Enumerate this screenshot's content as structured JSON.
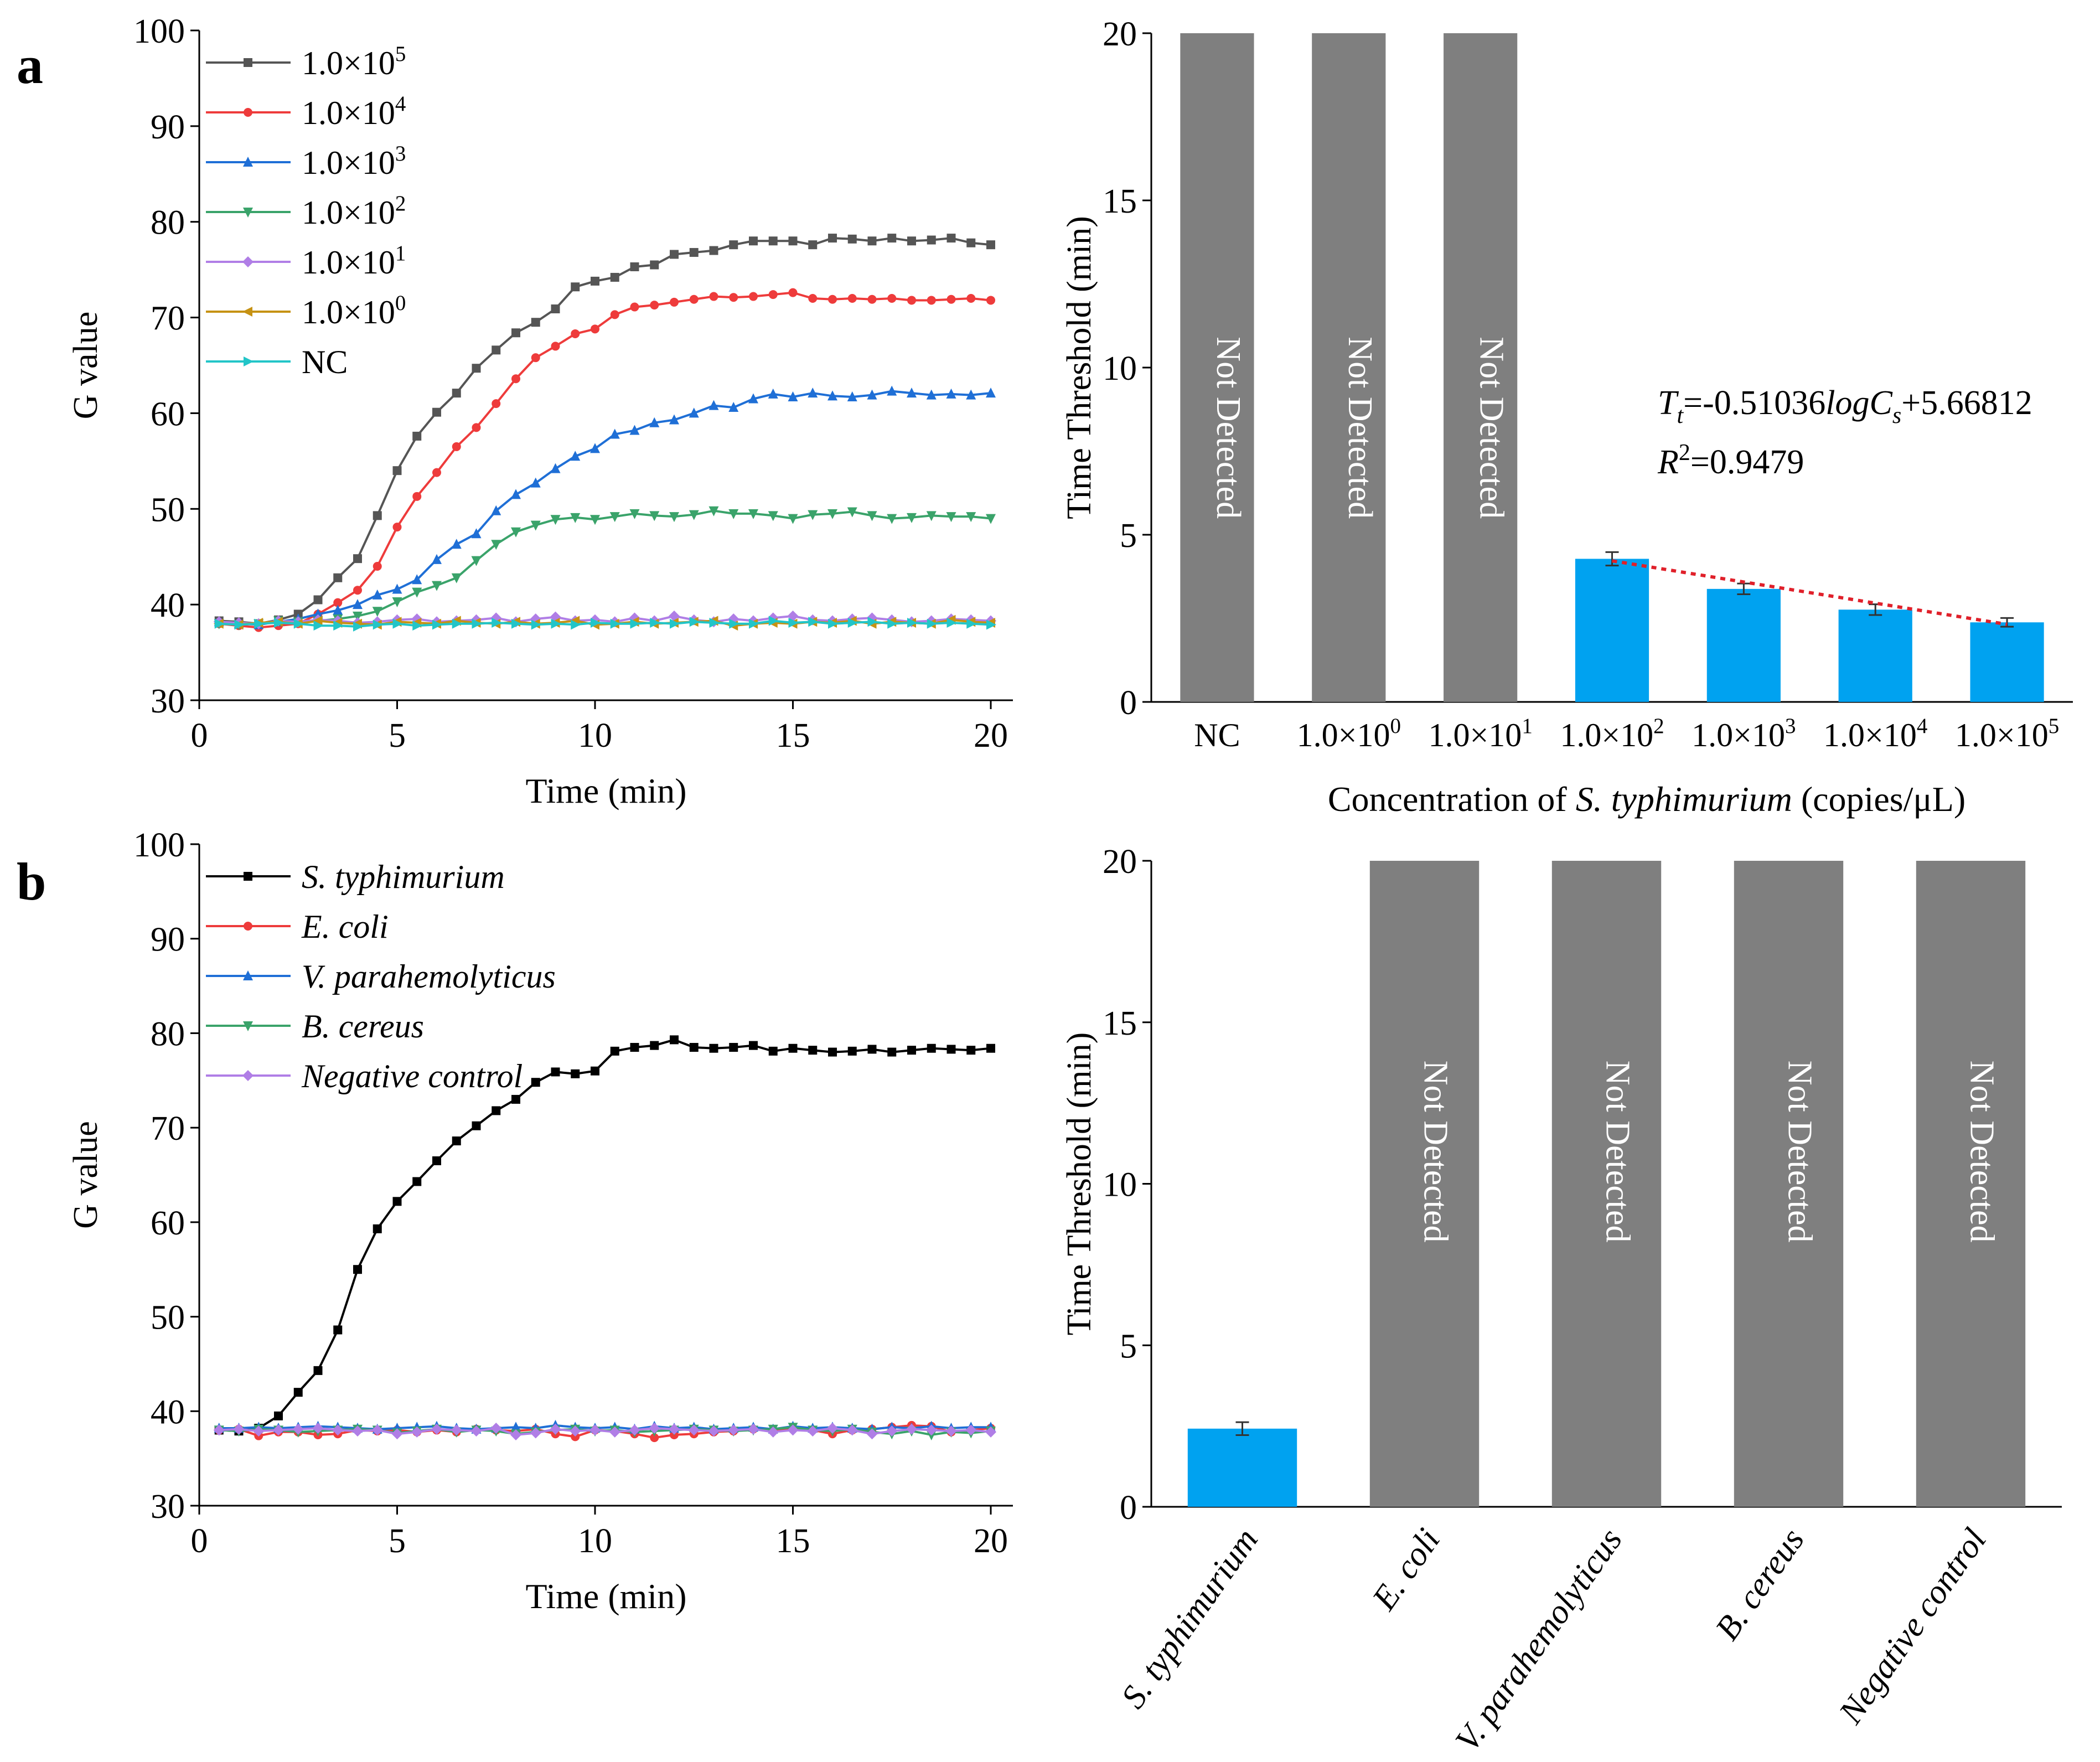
{
  "panel_labels": {
    "a": "a",
    "b": "b"
  },
  "colors": {
    "s1e5": "#555555",
    "s1e4": "#ee3b3b",
    "s1e3": "#1f6fd6",
    "s1e2": "#3aa36a",
    "s1e1": "#b07ee6",
    "s1e0": "#c69214",
    "nc": "#22c5c8",
    "black": "#000000",
    "bar_blue": "#00a2f0",
    "bar_gray": "#7f7f7f",
    "fit_red": "#e0202a"
  },
  "chart_data": [
    {
      "type": "line",
      "id": "a-left",
      "xlabel": "Time (min)",
      "ylabel": "G value",
      "xlim": [
        0,
        20
      ],
      "ylim": [
        30,
        100
      ],
      "xticks": [
        0,
        5,
        10,
        15,
        20
      ],
      "yticks": [
        30,
        40,
        50,
        60,
        70,
        80,
        90,
        100
      ],
      "legend_position": "top-left",
      "series": [
        {
          "name": "1.0×10⁵",
          "color_key": "s1e5",
          "marker": "square",
          "values": [
            38.3,
            38.2,
            38.0,
            38.4,
            39.0,
            40.5,
            42.8,
            44.8,
            49.3,
            54.0,
            57.6,
            60.1,
            62.1,
            64.7,
            66.6,
            68.4,
            69.5,
            70.9,
            73.2,
            73.8,
            74.2,
            75.3,
            75.5,
            76.6,
            76.8,
            77.0,
            77.6,
            78.0,
            78.0,
            78.0,
            77.6,
            78.3,
            78.2,
            78.0,
            78.3,
            78.0,
            78.1,
            78.3,
            77.8,
            77.6
          ]
        },
        {
          "name": "1.0×10⁴",
          "color_key": "s1e4",
          "marker": "circle",
          "values": [
            38.0,
            37.8,
            37.6,
            37.8,
            38.0,
            39.0,
            40.2,
            41.5,
            44.0,
            48.1,
            51.3,
            53.8,
            56.5,
            58.5,
            61.0,
            63.6,
            65.8,
            67.0,
            68.3,
            68.8,
            70.3,
            71.1,
            71.3,
            71.6,
            71.9,
            72.2,
            72.1,
            72.2,
            72.4,
            72.6,
            72.0,
            71.9,
            72.0,
            71.9,
            72.0,
            71.8,
            71.8,
            71.9,
            72.0,
            71.8
          ]
        },
        {
          "name": "1.0×10³",
          "color_key": "s1e3",
          "marker": "triangle-up",
          "values": [
            38.2,
            38.0,
            37.9,
            38.2,
            38.5,
            39.0,
            39.4,
            40.0,
            41.0,
            41.6,
            42.6,
            44.7,
            46.3,
            47.4,
            49.8,
            51.5,
            52.7,
            54.2,
            55.5,
            56.3,
            57.8,
            58.2,
            59.0,
            59.3,
            60.0,
            60.8,
            60.6,
            61.5,
            62.0,
            61.7,
            62.1,
            61.8,
            61.7,
            61.9,
            62.3,
            62.1,
            61.9,
            62.0,
            61.9,
            62.1
          ]
        },
        {
          "name": "1.0×10²",
          "color_key": "s1e2",
          "marker": "triangle-down",
          "values": [
            38.0,
            37.9,
            38.0,
            38.3,
            38.2,
            38.3,
            38.5,
            38.8,
            39.3,
            40.3,
            41.3,
            42.0,
            42.8,
            44.6,
            46.3,
            47.6,
            48.3,
            48.9,
            49.1,
            48.9,
            49.2,
            49.5,
            49.3,
            49.2,
            49.4,
            49.8,
            49.5,
            49.5,
            49.3,
            49.0,
            49.4,
            49.5,
            49.7,
            49.3,
            49.0,
            49.1,
            49.3,
            49.2,
            49.2,
            49.0
          ]
        },
        {
          "name": "1.0×10¹",
          "color_key": "s1e1",
          "marker": "diamond",
          "values": [
            38.2,
            38.1,
            38.0,
            38.3,
            38.2,
            38.4,
            38.3,
            38.1,
            38.2,
            38.4,
            38.5,
            38.2,
            38.3,
            38.4,
            38.6,
            38.2,
            38.5,
            38.7,
            38.3,
            38.4,
            38.2,
            38.6,
            38.3,
            38.8,
            38.4,
            38.2,
            38.5,
            38.3,
            38.6,
            38.8,
            38.4,
            38.3,
            38.5,
            38.6,
            38.4,
            38.2,
            38.3,
            38.5,
            38.4,
            38.3
          ]
        },
        {
          "name": "1.0×10⁰",
          "color_key": "s1e0",
          "marker": "triangle-left",
          "values": [
            38.0,
            37.9,
            38.1,
            38.2,
            38.0,
            38.3,
            38.1,
            38.0,
            37.9,
            38.2,
            38.1,
            38.0,
            38.3,
            38.1,
            38.0,
            38.2,
            38.0,
            38.1,
            38.3,
            37.9,
            38.0,
            38.2,
            38.0,
            38.1,
            38.2,
            38.3,
            37.8,
            38.0,
            38.1,
            38.0,
            38.2,
            38.1,
            38.3,
            38.0,
            38.2,
            38.1,
            38.0,
            38.4,
            38.2,
            38.1
          ]
        },
        {
          "name": "NC",
          "color_key": "nc",
          "marker": "triangle-right",
          "values": [
            38.0,
            37.9,
            38.0,
            38.1,
            38.0,
            37.8,
            37.8,
            37.7,
            37.9,
            38.0,
            37.8,
            37.9,
            38.0,
            38.0,
            38.1,
            38.0,
            37.9,
            38.0,
            37.9,
            38.1,
            38.0,
            38.0,
            38.1,
            38.0,
            38.2,
            38.1,
            38.0,
            38.0,
            38.3,
            38.1,
            38.2,
            38.0,
            38.1,
            38.2,
            38.0,
            38.1,
            38.0,
            38.1,
            38.0,
            37.9
          ]
        }
      ]
    },
    {
      "type": "bar",
      "id": "a-right",
      "xlabel_parts": [
        "Concentration of ",
        "S. typhimurium",
        " (copies/μL)"
      ],
      "ylabel": "Time Threshold (min)",
      "ylim": [
        0,
        20
      ],
      "yticks": [
        0,
        5,
        10,
        15,
        20
      ],
      "categories": [
        "NC",
        "1.0×10⁰",
        "1.0×10¹",
        "1.0×10²",
        "1.0×10³",
        "1.0×10⁴",
        "1.0×10⁵"
      ],
      "values": [
        20,
        20,
        20,
        4.28,
        3.38,
        2.76,
        2.38
      ],
      "errors": [
        0,
        0,
        0,
        0.2,
        0.16,
        0.16,
        0.13
      ],
      "detected": [
        false,
        false,
        false,
        true,
        true,
        true,
        true
      ],
      "not_detected_label": "Not Detected",
      "fit": {
        "type": "linear-trend",
        "y_start": 4.22,
        "y_end": 2.32
      },
      "equation": {
        "lhs": "T",
        "lhs_sub": "t",
        "mid": "=-0.51036",
        "log": "logC",
        "log_sub": "s",
        "rhs": "+5.66812"
      },
      "r2": {
        "symbol": "R",
        "sup": "2",
        "value": "=0.9479"
      }
    },
    {
      "type": "line",
      "id": "b-left",
      "xlabel": "Time (min)",
      "ylabel": "G value",
      "xlim": [
        0,
        20
      ],
      "ylim": [
        30,
        100
      ],
      "xticks": [
        0,
        5,
        10,
        15,
        20
      ],
      "yticks": [
        30,
        40,
        50,
        60,
        70,
        80,
        90,
        100
      ],
      "legend_position": "top-left",
      "series": [
        {
          "name": "S. typhimurium",
          "color_key": "black",
          "marker": "square",
          "values": [
            38.0,
            37.9,
            38.2,
            39.5,
            42.0,
            44.3,
            48.6,
            55.0,
            59.3,
            62.2,
            64.3,
            66.5,
            68.6,
            70.2,
            71.8,
            73.0,
            74.8,
            75.9,
            75.7,
            76.0,
            78.1,
            78.5,
            78.7,
            79.3,
            78.5,
            78.4,
            78.5,
            78.7,
            78.1,
            78.4,
            78.2,
            78.0,
            78.1,
            78.3,
            78.0,
            78.2,
            78.4,
            78.3,
            78.2,
            78.4
          ]
        },
        {
          "name": "E. coli",
          "color_key": "s1e4",
          "marker": "circle",
          "values": [
            38.0,
            38.1,
            37.4,
            37.8,
            37.8,
            37.5,
            37.6,
            38.0,
            37.9,
            38.0,
            37.8,
            38.0,
            37.8,
            38.1,
            38.0,
            37.9,
            38.1,
            37.6,
            37.3,
            38.0,
            37.9,
            37.6,
            37.2,
            37.5,
            37.6,
            37.8,
            37.9,
            38.1,
            38.0,
            38.2,
            38.0,
            37.6,
            38.0,
            38.1,
            38.3,
            38.5,
            38.4,
            37.8,
            38.0,
            38.2
          ]
        },
        {
          "name": "V. parahemolyticus",
          "color_key": "s1e3",
          "marker": "triangle-up",
          "values": [
            38.2,
            38.2,
            38.3,
            38.2,
            38.3,
            38.4,
            38.3,
            38.2,
            38.1,
            38.2,
            38.3,
            38.4,
            38.2,
            38.1,
            38.2,
            38.3,
            38.2,
            38.5,
            38.3,
            38.2,
            38.3,
            38.1,
            38.4,
            38.2,
            38.3,
            38.1,
            38.2,
            38.3,
            38.1,
            38.4,
            38.2,
            38.3,
            38.2,
            38.1,
            38.3,
            38.2,
            38.4,
            38.2,
            38.3,
            38.3
          ]
        },
        {
          "name": "B. cereus",
          "color_key": "s1e2",
          "marker": "triangle-down",
          "values": [
            38.0,
            37.9,
            38.1,
            38.0,
            37.8,
            37.9,
            38.0,
            38.1,
            38.0,
            37.7,
            37.9,
            38.1,
            37.8,
            38.0,
            37.9,
            37.6,
            37.8,
            38.0,
            38.1,
            37.9,
            38.0,
            37.8,
            37.9,
            38.0,
            38.1,
            38.0,
            37.9,
            38.0,
            38.1,
            38.3,
            38.0,
            37.9,
            38.1,
            37.8,
            37.6,
            37.9,
            37.5,
            37.8,
            37.7,
            37.9
          ]
        },
        {
          "name": "Negative control",
          "color_key": "s1e1",
          "marker": "diamond",
          "values": [
            38.0,
            38.1,
            37.9,
            38.0,
            38.1,
            38.2,
            38.0,
            37.9,
            38.0,
            37.6,
            37.8,
            38.1,
            38.0,
            37.9,
            38.2,
            37.5,
            37.7,
            38.1,
            37.9,
            38.0,
            37.8,
            38.0,
            38.2,
            38.1,
            38.0,
            37.9,
            38.0,
            38.1,
            37.8,
            38.0,
            37.9,
            38.2,
            38.0,
            37.6,
            37.9,
            38.1,
            38.0,
            37.9,
            38.0,
            37.8
          ]
        }
      ]
    },
    {
      "type": "bar",
      "id": "b-right",
      "ylabel": "Time Threshold (min)",
      "ylim": [
        0,
        20
      ],
      "yticks": [
        0,
        5,
        10,
        15,
        20
      ],
      "categories": [
        "S. typhimurium",
        "E. coli",
        "V. parahemolyticus",
        "B. cereus",
        "Negative control"
      ],
      "values": [
        2.42,
        20,
        20,
        20,
        20
      ],
      "errors": [
        0.2,
        0,
        0,
        0,
        0
      ],
      "detected": [
        true,
        false,
        false,
        false,
        false
      ],
      "not_detected_label": "Not Detected"
    }
  ]
}
